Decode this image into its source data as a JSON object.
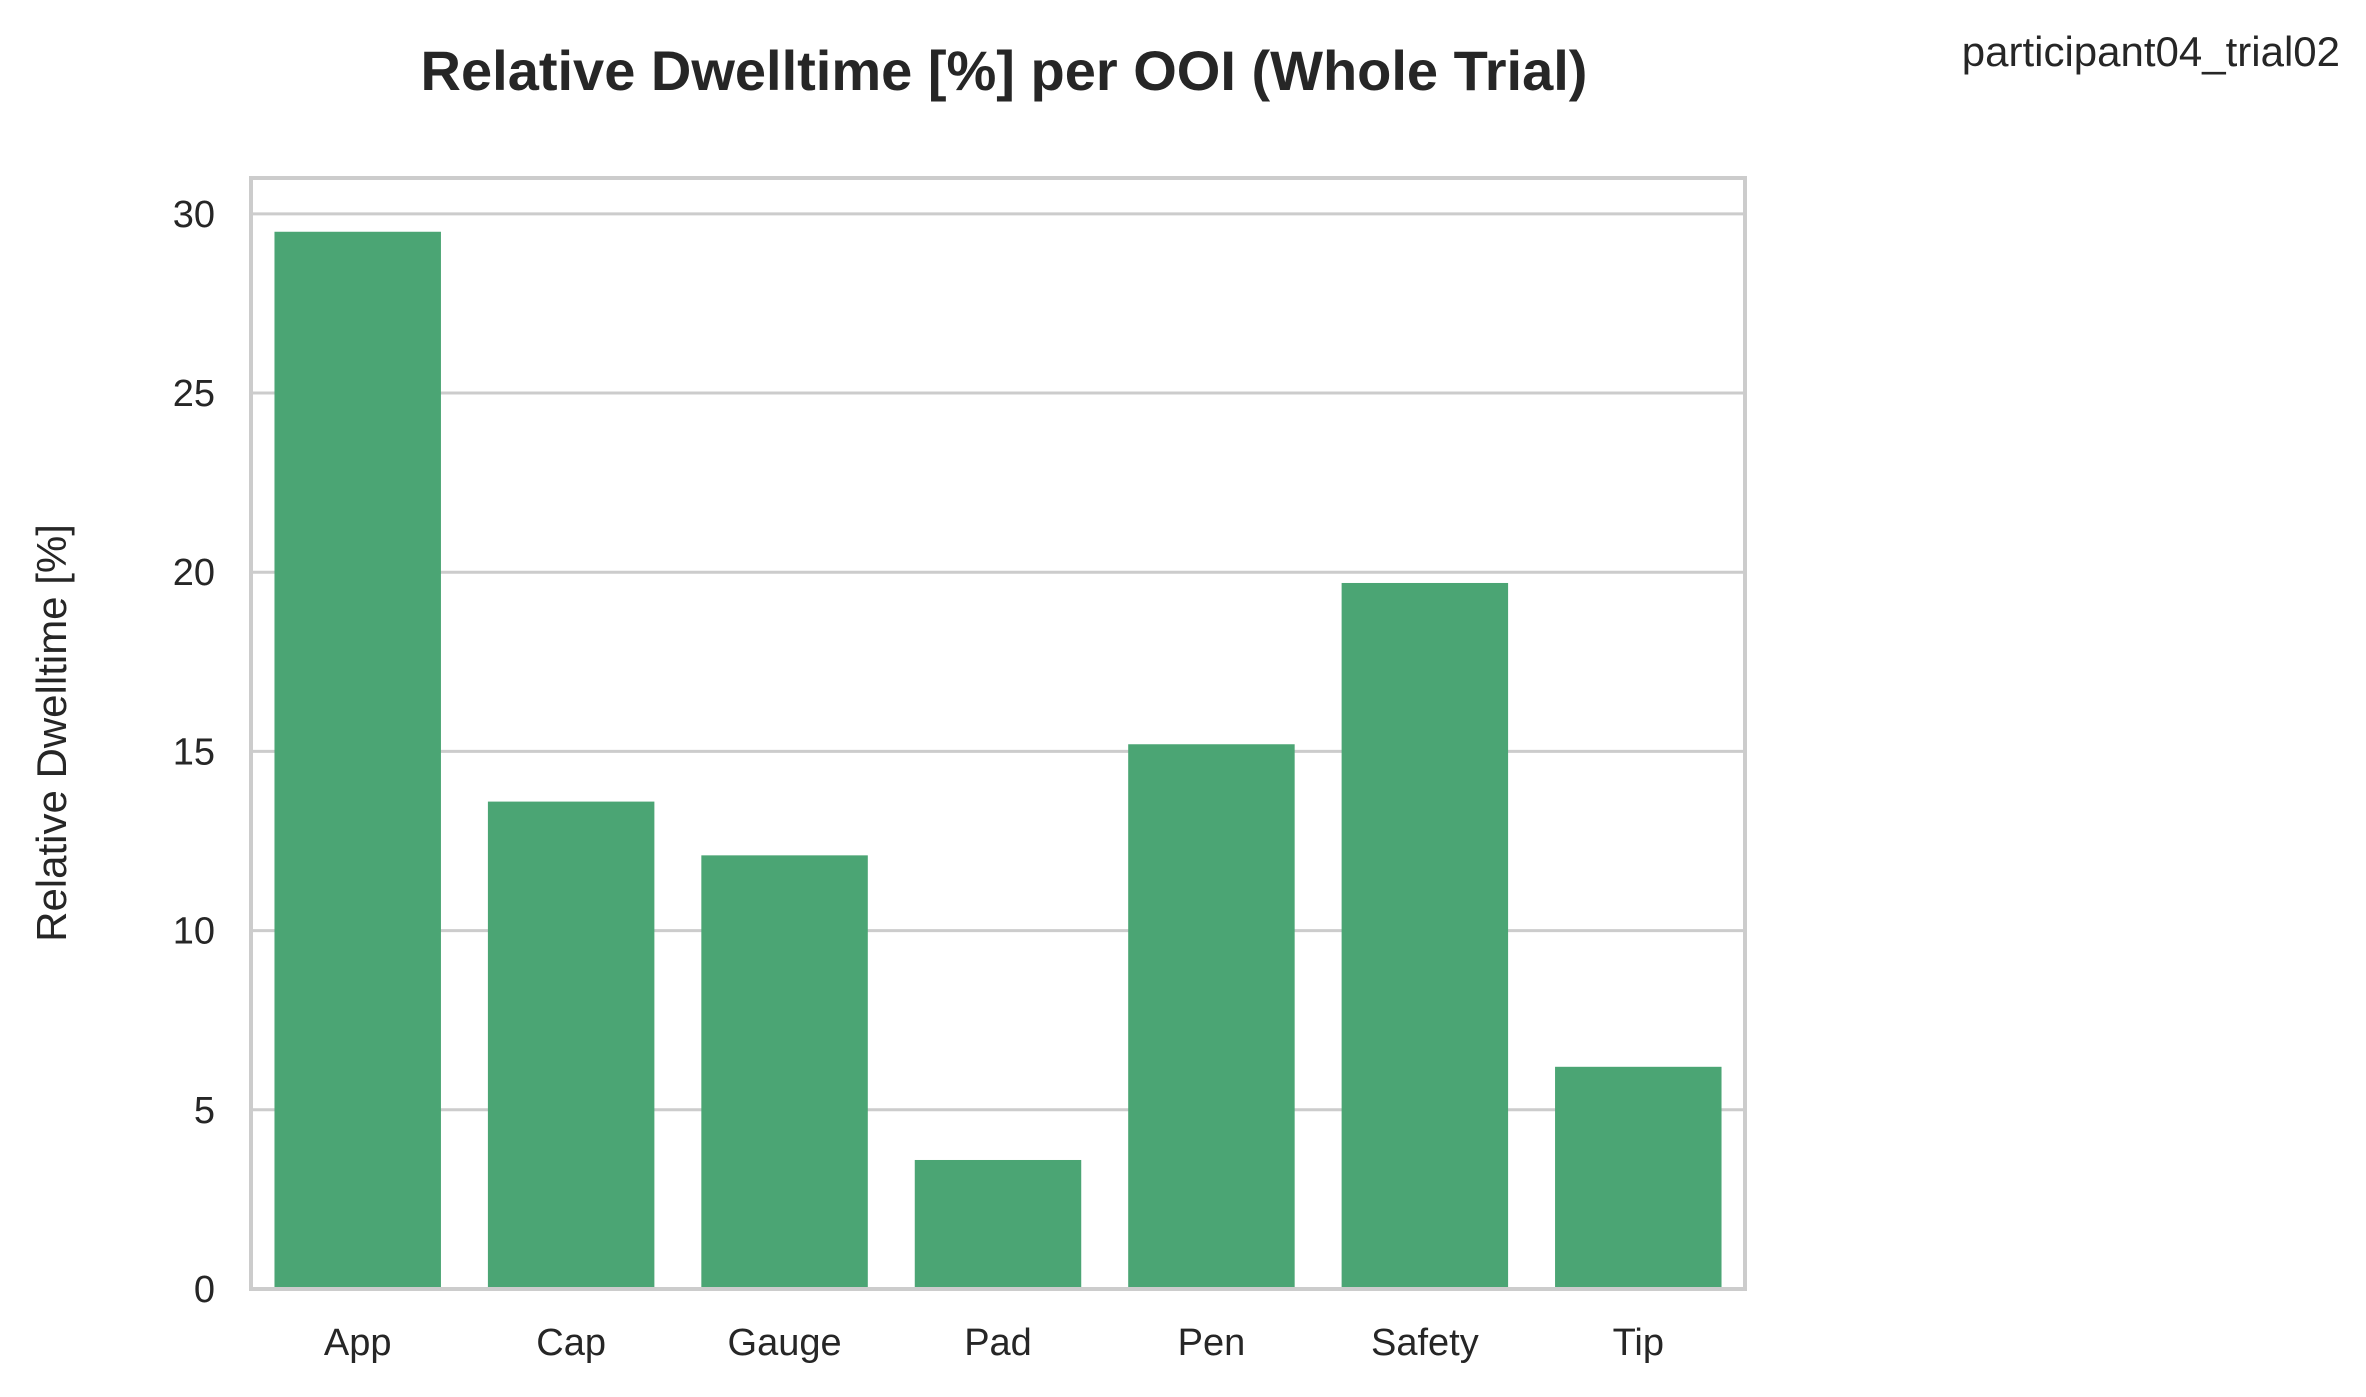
{
  "chart_data": {
    "type": "bar",
    "title": "Relative Dwelltime [%] per OOI (Whole Trial)",
    "annotation": "participant04_trial02",
    "xlabel": "",
    "ylabel": "Relative Dwelltime [%]",
    "categories": [
      "App",
      "Cap",
      "Gauge",
      "Pad",
      "Pen",
      "Safety",
      "Tip"
    ],
    "values": [
      29.5,
      13.6,
      12.1,
      3.6,
      15.2,
      19.7,
      6.2
    ],
    "ylim": [
      0,
      31
    ],
    "yticks": [
      0,
      5,
      10,
      15,
      20,
      25,
      30
    ],
    "bar_color": "#4ba574",
    "grid": "horizontal",
    "legend": "none"
  }
}
